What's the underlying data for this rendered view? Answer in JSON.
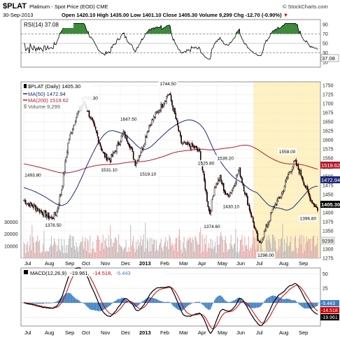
{
  "header": {
    "symbol": "$PLAT",
    "name": "Platinum - Spot Price (EOD)",
    "exchange": "CME",
    "date": "30-Sep-2013",
    "quote_line": "Open 1420.10  High 1435.00  Low 1401.10  Close 1405.30  Volume 9,299  Chg -12.70 (-0.90%)",
    "down_marker": "▼",
    "watermark": "© StockCharts.com"
  },
  "colors": {
    "price_bar": "#000000",
    "ma50": "#1f2a7a",
    "ma200": "#b21b2a",
    "rsi_line": "#000000",
    "rsi_fill_over": "#3d8a3d",
    "macd_line": "#000000",
    "macd_signal": "#cc0000",
    "macd_hist": "#3d7fc4",
    "volume_up": "#b9b9b9",
    "volume_down": "#e6a9a9",
    "highlight": "#fff2c2"
  },
  "rsi": {
    "legend": "RSI(14) 37.08",
    "current_label": "37.08",
    "ticks": [
      "90",
      "70",
      "50",
      "30",
      "10"
    ]
  },
  "price": {
    "legend_main": "$PLAT (Daily) 1405.30",
    "legend_ma50": "MA(50) 1472.94",
    "legend_ma200": "MA(200) 1519.62",
    "legend_volume": "Volume 9,299",
    "ticks": [
      "1750",
      "1725",
      "1700",
      "1675",
      "1650",
      "1625",
      "1600",
      "1575",
      "1550",
      "1525",
      "1500",
      "1475",
      "1450",
      "1425",
      "1400",
      "1375",
      "1350",
      "1325",
      "1300",
      "1275"
    ],
    "tag_ma200": "1519.62",
    "tag_ma50": "1472.94",
    "tag_close": "1405.30",
    "tag_volume": "9299",
    "volume_ticks": [
      "30000",
      "20000",
      "10000"
    ]
  },
  "macd": {
    "legend_prefix": "MACD(12,26,9)",
    "legend_macd": "-19.961,",
    "legend_signal": "-14.518,",
    "legend_hist": "-5.443",
    "ticks": [
      "50",
      "25",
      "0",
      "-25"
    ],
    "tag_hist": "-5.443",
    "tag_signal": "-14.518",
    "tag_macd": "-19.961"
  },
  "x_axis_months": [
    "Jul",
    "Aug",
    "Sep",
    "Oct",
    "Nov",
    "Dec",
    "2013",
    "Feb",
    "Mar",
    "Apr",
    "May",
    "Jun",
    "Jul",
    "Aug",
    "Sep"
  ],
  "chart_data": {
    "type": "candlestick",
    "title": "$PLAT Platinum - Spot Price (EOD) CME",
    "x_start": "Jul 2012",
    "x_end": "30-Sep-2013",
    "price_range": [
      1275,
      1760
    ],
    "closing_anchors": [
      {
        "x": "Jul 2012",
        "y": 1435
      },
      {
        "x": "Jul 2012",
        "y": 1408
      },
      {
        "x": "Aug 2012",
        "y": 1392
      },
      {
        "x": "Aug 2012",
        "y": 1385
      },
      {
        "x": "Aug 2012",
        "y": 1400
      },
      {
        "x": "Aug 2012",
        "y": 1470
      },
      {
        "x": "Sep 2012",
        "y": 1600
      },
      {
        "x": "Sep 2012",
        "y": 1670
      },
      {
        "x": "Oct 2012",
        "y": 1705
      },
      {
        "x": "Oct 2012",
        "y": 1660
      },
      {
        "x": "Oct 2012",
        "y": 1615
      },
      {
        "x": "Nov 2012",
        "y": 1560
      },
      {
        "x": "Nov 2012",
        "y": 1545
      },
      {
        "x": "Nov 2012",
        "y": 1580
      },
      {
        "x": "Dec 2012",
        "y": 1620
      },
      {
        "x": "Dec 2012",
        "y": 1590
      },
      {
        "x": "Dec 2012",
        "y": 1535
      },
      {
        "x": "2013",
        "y": 1575
      },
      {
        "x": "2013",
        "y": 1640
      },
      {
        "x": "2013",
        "y": 1670
      },
      {
        "x": "Feb 2013",
        "y": 1700
      },
      {
        "x": "Feb 2013",
        "y": 1730
      },
      {
        "x": "Feb 2013",
        "y": 1665
      },
      {
        "x": "Mar 2013",
        "y": 1590
      },
      {
        "x": "Mar 2013",
        "y": 1585
      },
      {
        "x": "Mar 2013",
        "y": 1580
      },
      {
        "x": "Apr 2013",
        "y": 1565
      },
      {
        "x": "Apr 2013",
        "y": 1480
      },
      {
        "x": "Apr 2013",
        "y": 1395
      },
      {
        "x": "Apr 2013",
        "y": 1470
      },
      {
        "x": "May 2013",
        "y": 1495
      },
      {
        "x": "May 2013",
        "y": 1445
      },
      {
        "x": "May 2013",
        "y": 1465
      },
      {
        "x": "Jun 2013",
        "y": 1520
      },
      {
        "x": "Jun 2013",
        "y": 1450
      },
      {
        "x": "Jun 2013",
        "y": 1385
      },
      {
        "x": "Jul 2013",
        "y": 1310
      },
      {
        "x": "Jul 2013",
        "y": 1365
      },
      {
        "x": "Jul 2013",
        "y": 1420
      },
      {
        "x": "Aug 2013",
        "y": 1450
      },
      {
        "x": "Aug 2013",
        "y": 1505
      },
      {
        "x": "Aug 2013",
        "y": 1540
      },
      {
        "x": "Sep 2013",
        "y": 1500
      },
      {
        "x": "Sep 2013",
        "y": 1445
      },
      {
        "x": "Sep 2013",
        "y": 1405.3
      }
    ],
    "annotations": [
      {
        "x": "Jul 2012",
        "price": 1493.8,
        "label": "1493.80"
      },
      {
        "x": "Aug 2012",
        "price": 1378.5,
        "label": "1378.50"
      },
      {
        "x": "Oct 2012",
        "price": 1705.3,
        "label": "1705.30"
      },
      {
        "x": "Nov 2012",
        "price": 1531.1,
        "label": "1531.10"
      },
      {
        "x": "Dec 2012",
        "price": 1647.5,
        "label": "1647.50"
      },
      {
        "x": "2013",
        "price": 1519.1,
        "label": "1519.10"
      },
      {
        "x": "Feb 2013",
        "price": 1744.5,
        "label": "1744.50"
      },
      {
        "x": "Apr 2013",
        "price": 1525.8,
        "label": "1525.80"
      },
      {
        "x": "Apr 2013",
        "price": 1374.6,
        "label": "1374.60"
      },
      {
        "x": "May 2013",
        "price": 1539.2,
        "label": "1539.20"
      },
      {
        "x": "May 2013",
        "price": 1430.1,
        "label": "1430.10"
      },
      {
        "x": "Jul 2013",
        "price": 1296.0,
        "label": "1296.00"
      },
      {
        "x": "Aug 2013",
        "price": 1558.0,
        "label": "1558.00"
      },
      {
        "x": "Sep 2013",
        "price": 1396.8,
        "label": "1396.80"
      }
    ],
    "series": [
      {
        "name": "MA(50)",
        "last": 1472.94
      },
      {
        "name": "MA(200)",
        "last": 1519.62
      },
      {
        "name": "Volume",
        "last": 9299
      },
      {
        "name": "RSI(14)",
        "last": 37.08
      },
      {
        "name": "MACD(12,26,9)",
        "last": -19.961
      },
      {
        "name": "Signal",
        "last": -14.518
      },
      {
        "name": "Histogram",
        "last": -5.443
      }
    ],
    "highlight_range": [
      "Jun 2013",
      "Sep 2013"
    ]
  }
}
